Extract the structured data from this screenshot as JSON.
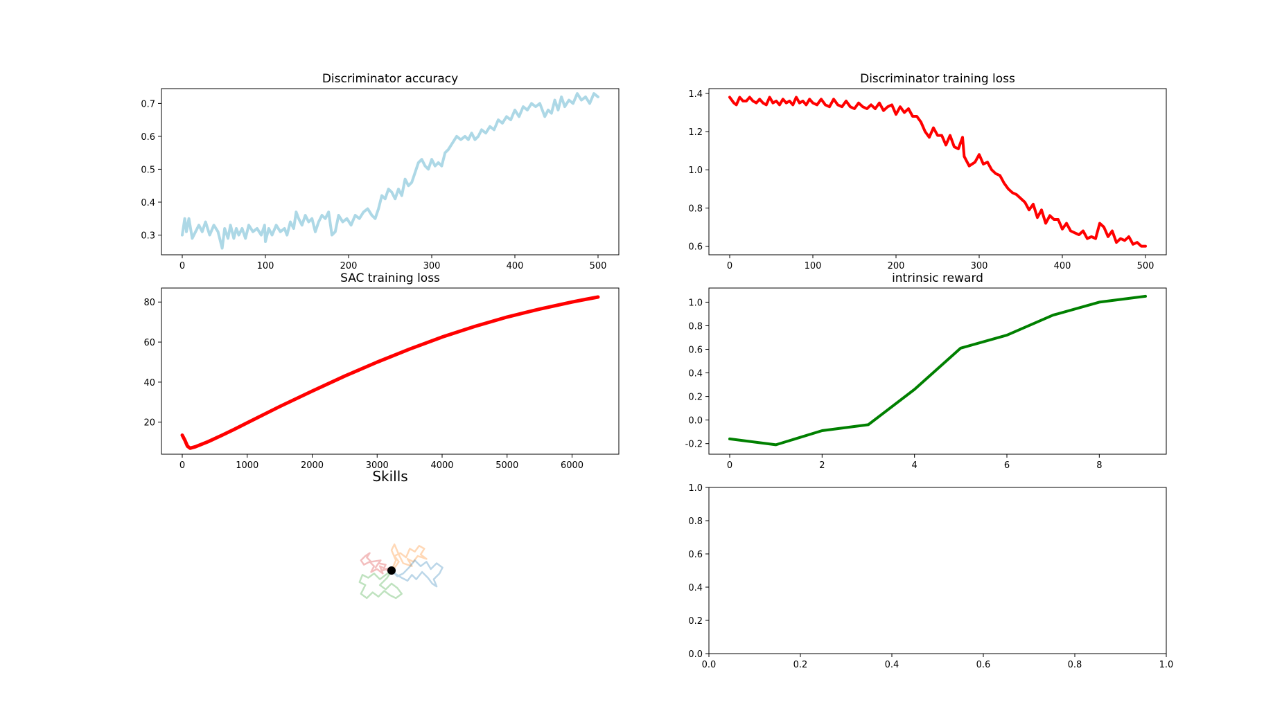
{
  "chart_data": [
    {
      "id": "disc_acc",
      "type": "line",
      "title": "Discriminator accuracy",
      "xlim": [
        -25,
        525
      ],
      "ylim": [
        0.24,
        0.745
      ],
      "xticks": [
        0,
        100,
        200,
        300,
        400,
        500
      ],
      "yticks": [
        0.3,
        0.4,
        0.5,
        0.6,
        0.7
      ],
      "tick_format": {
        "x": 0,
        "y": 1
      },
      "color": "#add8e6",
      "line_width": 4,
      "series": [
        {
          "x": [
            0,
            3,
            5,
            8,
            12,
            16,
            20,
            24,
            28,
            33,
            38,
            43,
            48,
            51,
            55,
            58,
            62,
            65,
            68,
            72,
            76,
            80,
            85,
            90,
            95,
            99,
            100,
            104,
            108,
            113,
            118,
            123,
            126,
            130,
            134,
            137,
            140,
            144,
            148,
            152,
            156,
            160,
            164,
            168,
            172,
            176,
            180,
            184,
            188,
            193,
            198,
            203,
            208,
            213,
            218,
            223,
            228,
            232,
            236,
            240,
            244,
            248,
            252,
            256,
            260,
            264,
            268,
            272,
            276,
            280,
            284,
            288,
            292,
            296,
            300,
            304,
            308,
            312,
            316,
            320,
            325,
            330,
            335,
            340,
            344,
            348,
            352,
            356,
            360,
            365,
            370,
            375,
            380,
            385,
            390,
            395,
            400,
            405,
            410,
            415,
            420,
            425,
            430,
            436,
            440,
            444,
            448,
            452,
            456,
            460,
            465,
            470,
            475,
            480,
            485,
            490,
            495,
            500
          ],
          "values": [
            0.3,
            0.35,
            0.31,
            0.35,
            0.29,
            0.31,
            0.33,
            0.31,
            0.34,
            0.3,
            0.33,
            0.31,
            0.26,
            0.32,
            0.29,
            0.33,
            0.29,
            0.32,
            0.3,
            0.32,
            0.29,
            0.33,
            0.31,
            0.32,
            0.3,
            0.33,
            0.28,
            0.32,
            0.3,
            0.33,
            0.31,
            0.32,
            0.3,
            0.34,
            0.32,
            0.37,
            0.35,
            0.33,
            0.36,
            0.34,
            0.35,
            0.31,
            0.34,
            0.36,
            0.35,
            0.37,
            0.3,
            0.31,
            0.36,
            0.34,
            0.35,
            0.33,
            0.36,
            0.35,
            0.37,
            0.38,
            0.36,
            0.35,
            0.38,
            0.42,
            0.41,
            0.44,
            0.43,
            0.41,
            0.44,
            0.42,
            0.47,
            0.45,
            0.46,
            0.49,
            0.52,
            0.53,
            0.51,
            0.5,
            0.53,
            0.51,
            0.52,
            0.51,
            0.55,
            0.56,
            0.58,
            0.6,
            0.59,
            0.6,
            0.59,
            0.61,
            0.59,
            0.6,
            0.62,
            0.61,
            0.63,
            0.62,
            0.65,
            0.64,
            0.66,
            0.65,
            0.68,
            0.66,
            0.69,
            0.68,
            0.7,
            0.69,
            0.7,
            0.66,
            0.68,
            0.67,
            0.71,
            0.68,
            0.72,
            0.69,
            0.71,
            0.7,
            0.73,
            0.71,
            0.72,
            0.7,
            0.73,
            0.72
          ]
        }
      ]
    },
    {
      "id": "disc_loss",
      "type": "line",
      "title": "Discriminator training loss",
      "xlim": [
        -25,
        525
      ],
      "ylim": [
        0.555,
        1.425
      ],
      "xticks": [
        0,
        100,
        200,
        300,
        400,
        500
      ],
      "yticks": [
        0.6,
        0.8,
        1.0,
        1.2,
        1.4
      ],
      "tick_format": {
        "x": 0,
        "y": 1
      },
      "color": "#ff0000",
      "line_width": 4,
      "series": [
        {
          "x": [
            0,
            5,
            8,
            12,
            16,
            20,
            24,
            28,
            32,
            36,
            40,
            44,
            48,
            52,
            56,
            60,
            64,
            68,
            72,
            76,
            80,
            84,
            88,
            92,
            96,
            100,
            105,
            110,
            115,
            120,
            125,
            130,
            135,
            140,
            145,
            150,
            155,
            160,
            165,
            170,
            175,
            180,
            185,
            190,
            195,
            200,
            205,
            210,
            215,
            220,
            225,
            230,
            235,
            240,
            245,
            250,
            255,
            260,
            265,
            270,
            275,
            280,
            282,
            288,
            295,
            300,
            305,
            310,
            315,
            320,
            325,
            330,
            335,
            340,
            345,
            350,
            355,
            360,
            365,
            370,
            375,
            380,
            385,
            390,
            395,
            400,
            405,
            410,
            415,
            420,
            425,
            430,
            435,
            440,
            445,
            450,
            455,
            460,
            465,
            470,
            475,
            480,
            485,
            490,
            495,
            500
          ],
          "values": [
            1.38,
            1.35,
            1.34,
            1.38,
            1.36,
            1.36,
            1.38,
            1.36,
            1.35,
            1.37,
            1.35,
            1.34,
            1.38,
            1.35,
            1.36,
            1.34,
            1.37,
            1.35,
            1.36,
            1.34,
            1.38,
            1.35,
            1.36,
            1.34,
            1.37,
            1.35,
            1.34,
            1.37,
            1.34,
            1.33,
            1.37,
            1.34,
            1.33,
            1.36,
            1.33,
            1.32,
            1.35,
            1.33,
            1.32,
            1.34,
            1.32,
            1.35,
            1.31,
            1.33,
            1.34,
            1.29,
            1.33,
            1.3,
            1.32,
            1.28,
            1.28,
            1.25,
            1.2,
            1.17,
            1.22,
            1.18,
            1.18,
            1.13,
            1.18,
            1.12,
            1.11,
            1.17,
            1.07,
            1.02,
            1.04,
            1.08,
            1.03,
            1.04,
            1.0,
            0.98,
            0.97,
            0.93,
            0.9,
            0.88,
            0.87,
            0.85,
            0.83,
            0.79,
            0.82,
            0.75,
            0.79,
            0.72,
            0.76,
            0.74,
            0.74,
            0.69,
            0.72,
            0.68,
            0.67,
            0.66,
            0.68,
            0.64,
            0.65,
            0.64,
            0.72,
            0.7,
            0.65,
            0.68,
            0.62,
            0.64,
            0.63,
            0.65,
            0.61,
            0.62,
            0.6,
            0.6
          ]
        }
      ]
    },
    {
      "id": "sac_loss",
      "type": "line",
      "title": "SAC training loss",
      "xlim": [
        -320,
        6720
      ],
      "ylim": [
        4,
        87
      ],
      "xticks": [
        0,
        1000,
        2000,
        3000,
        4000,
        5000,
        6000
      ],
      "yticks": [
        20,
        40,
        60,
        80
      ],
      "tick_format": {
        "x": 0,
        "y": 0
      },
      "color": "#ff0000",
      "line_width": 5,
      "series": [
        {
          "x": [
            0,
            40,
            80,
            120,
            200,
            400,
            600,
            800,
            1000,
            1500,
            2000,
            2500,
            3000,
            3500,
            4000,
            4500,
            5000,
            5500,
            6000,
            6200,
            6400
          ],
          "values": [
            13.5,
            11,
            8,
            7,
            7.7,
            10.3,
            13.3,
            16.4,
            19.7,
            27.8,
            35.5,
            43.0,
            50.0,
            56.5,
            62.5,
            67.8,
            72.5,
            76.5,
            80.0,
            81.3,
            82.5
          ]
        }
      ]
    },
    {
      "id": "intrinsic",
      "type": "line",
      "title": "intrinsic reward",
      "xlim": [
        -0.45,
        9.45
      ],
      "ylim": [
        -0.29,
        1.12
      ],
      "xticks": [
        0,
        2,
        4,
        6,
        8
      ],
      "yticks": [
        -0.2,
        0.0,
        0.2,
        0.4,
        0.6,
        0.8,
        1.0
      ],
      "tick_format": {
        "x": 0,
        "y": 1
      },
      "color": "#008000",
      "line_width": 4,
      "series": [
        {
          "x": [
            0,
            1,
            2,
            3,
            4,
            5,
            6,
            7,
            8,
            9
          ],
          "values": [
            -0.16,
            -0.21,
            -0.09,
            -0.04,
            0.26,
            0.61,
            0.72,
            0.89,
            1.0,
            1.05
          ]
        }
      ]
    },
    {
      "id": "skills",
      "type": "line",
      "title": "Skills",
      "xlim": [
        -1,
        1
      ],
      "ylim": [
        -1,
        1
      ],
      "alpha": 0.3,
      "line_width": 2.5,
      "marker": {
        "x": 0,
        "y": 0,
        "color": "#000000"
      },
      "series": [
        {
          "color": "#d62728",
          "x": [
            0,
            -0.05,
            -0.12,
            -0.08,
            -0.18,
            -0.22,
            -0.15,
            -0.28,
            -0.34,
            -0.3,
            -0.36,
            -0.42,
            -0.38,
            -0.3,
            -0.24,
            -0.28,
            -0.2,
            -0.12,
            -0.16,
            -0.08,
            -0.02,
            0
          ],
          "values": [
            0,
            0.03,
            0.0,
            0.08,
            0.1,
            0.04,
            0.14,
            0.12,
            0.18,
            0.24,
            0.2,
            0.14,
            0.08,
            0.12,
            0.06,
            -0.02,
            0.02,
            -0.04,
            0.06,
            0.02,
            -0.03,
            0
          ]
        },
        {
          "color": "#ff7f0e",
          "x": [
            0,
            0.05,
            0.1,
            0.04,
            0.12,
            0.2,
            0.25,
            0.32,
            0.38,
            0.45,
            0.4,
            0.48,
            0.36,
            0.3,
            0.22,
            0.28,
            0.16,
            0.1,
            0.04,
            0.0,
            0.06,
            0
          ],
          "values": [
            0,
            0.05,
            0.12,
            0.2,
            0.24,
            0.18,
            0.3,
            0.26,
            0.34,
            0.3,
            0.22,
            0.16,
            0.2,
            0.12,
            0.16,
            0.06,
            0.1,
            0.22,
            0.36,
            0.28,
            0.14,
            0
          ]
        },
        {
          "color": "#1f77b4",
          "x": [
            0,
            0.06,
            0.14,
            0.22,
            0.28,
            0.34,
            0.42,
            0.5,
            0.56,
            0.62,
            0.58,
            0.66,
            0.7,
            0.62,
            0.54,
            0.48,
            0.4,
            0.32,
            0.24,
            0.16,
            0.08,
            0
          ],
          "values": [
            0,
            -0.05,
            -0.1,
            -0.14,
            -0.06,
            -0.12,
            -0.02,
            -0.1,
            -0.18,
            -0.22,
            -0.12,
            -0.04,
            0.04,
            0.1,
            0.02,
            0.12,
            0.06,
            0.14,
            0.04,
            -0.04,
            -0.08,
            0
          ]
        },
        {
          "color": "#2ca02c",
          "x": [
            0,
            -0.08,
            -0.16,
            -0.24,
            -0.32,
            -0.4,
            -0.44,
            -0.36,
            -0.42,
            -0.34,
            -0.26,
            -0.18,
            -0.1,
            -0.02,
            0.06,
            0.14,
            0.08,
            0.0,
            -0.08,
            -0.16,
            -0.06,
            0
          ],
          "values": [
            0,
            -0.06,
            -0.12,
            -0.04,
            -0.1,
            -0.06,
            -0.16,
            -0.2,
            -0.32,
            -0.38,
            -0.3,
            -0.36,
            -0.28,
            -0.34,
            -0.38,
            -0.32,
            -0.24,
            -0.18,
            -0.26,
            -0.2,
            -0.1,
            0
          ]
        }
      ]
    },
    {
      "id": "empty",
      "type": "line",
      "title": "",
      "xlim": [
        0,
        1
      ],
      "ylim": [
        0,
        1
      ],
      "xticks": [
        0.0,
        0.2,
        0.4,
        0.6,
        0.8,
        1.0
      ],
      "yticks": [
        0.0,
        0.2,
        0.4,
        0.6,
        0.8,
        1.0
      ],
      "tick_format": {
        "x": 1,
        "y": 1
      },
      "series": []
    }
  ]
}
